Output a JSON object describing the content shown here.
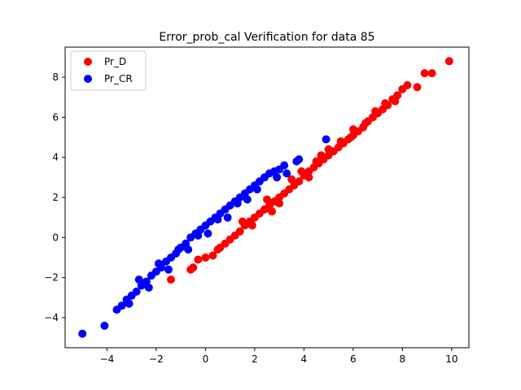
{
  "chart_data": {
    "type": "scatter",
    "title": "Error_prob_cal Verification for data 85",
    "xlabel": "",
    "ylabel": "",
    "xlim": [
      -5.7,
      10.7
    ],
    "ylim": [
      -5.5,
      9.5
    ],
    "xticks": [
      -4,
      -2,
      0,
      2,
      4,
      6,
      8,
      10
    ],
    "yticks": [
      -4,
      -2,
      0,
      2,
      4,
      6,
      8
    ],
    "grid": false,
    "legend_position": "top-left",
    "series": [
      {
        "name": "Pr_D",
        "color": "#ff0000",
        "points": [
          [
            -1.4,
            -2.1
          ],
          [
            -0.6,
            -1.6
          ],
          [
            -0.5,
            -1.5
          ],
          [
            -0.3,
            -1.1
          ],
          [
            0.0,
            -1.0
          ],
          [
            0.3,
            -0.9
          ],
          [
            0.5,
            -0.6
          ],
          [
            0.8,
            -0.3
          ],
          [
            1.0,
            -0.1
          ],
          [
            1.2,
            0.1
          ],
          [
            1.4,
            0.3
          ],
          [
            1.6,
            0.6
          ],
          [
            1.8,
            0.8
          ],
          [
            2.0,
            1.0
          ],
          [
            2.2,
            1.2
          ],
          [
            2.4,
            1.4
          ],
          [
            2.6,
            1.6
          ],
          [
            2.8,
            1.8
          ],
          [
            3.0,
            2.0
          ],
          [
            3.2,
            2.2
          ],
          [
            3.4,
            2.4
          ],
          [
            3.6,
            2.6
          ],
          [
            3.8,
            2.8
          ],
          [
            4.0,
            3.1
          ],
          [
            4.2,
            3.3
          ],
          [
            4.4,
            3.5
          ],
          [
            4.6,
            3.7
          ],
          [
            4.8,
            3.9
          ],
          [
            5.0,
            4.1
          ],
          [
            5.2,
            4.3
          ],
          [
            5.4,
            4.5
          ],
          [
            5.6,
            4.7
          ],
          [
            5.8,
            4.9
          ],
          [
            6.0,
            5.1
          ],
          [
            6.2,
            5.3
          ],
          [
            6.4,
            5.5
          ],
          [
            6.6,
            5.8
          ],
          [
            6.8,
            6.0
          ],
          [
            7.0,
            6.2
          ],
          [
            7.2,
            6.4
          ],
          [
            7.4,
            6.6
          ],
          [
            7.6,
            6.9
          ],
          [
            7.8,
            7.1
          ],
          [
            8.0,
            7.4
          ],
          [
            8.2,
            7.6
          ],
          [
            8.6,
            7.5
          ],
          [
            8.9,
            8.2
          ],
          [
            9.2,
            8.2
          ],
          [
            9.9,
            8.8
          ],
          [
            2.5,
            1.9
          ],
          [
            3.5,
            2.9
          ],
          [
            4.5,
            3.8
          ],
          [
            5.5,
            4.8
          ],
          [
            6.5,
            5.7
          ],
          [
            1.5,
            0.8
          ],
          [
            3.0,
            1.7
          ],
          [
            4.2,
            3.0
          ],
          [
            5.0,
            4.4
          ],
          [
            6.0,
            5.4
          ],
          [
            7.3,
            6.7
          ],
          [
            0.6,
            -0.5
          ],
          [
            1.9,
            0.6
          ],
          [
            2.7,
            1.3
          ],
          [
            3.9,
            3.3
          ],
          [
            4.7,
            4.1
          ],
          [
            5.9,
            5.0
          ],
          [
            6.9,
            6.3
          ],
          [
            7.7,
            6.8
          ]
        ]
      },
      {
        "name": "Pr_CR",
        "color": "#0000ff",
        "points": [
          [
            -5.0,
            -4.8
          ],
          [
            -4.1,
            -4.4
          ],
          [
            -3.6,
            -3.6
          ],
          [
            -3.4,
            -3.4
          ],
          [
            -3.2,
            -3.1
          ],
          [
            -3.0,
            -2.9
          ],
          [
            -2.8,
            -2.7
          ],
          [
            -2.6,
            -2.4
          ],
          [
            -2.4,
            -2.2
          ],
          [
            -2.2,
            -1.9
          ],
          [
            -2.0,
            -1.7
          ],
          [
            -1.8,
            -1.5
          ],
          [
            -1.6,
            -1.2
          ],
          [
            -1.4,
            -1.0
          ],
          [
            -1.2,
            -0.8
          ],
          [
            -1.0,
            -0.5
          ],
          [
            -0.8,
            -0.3
          ],
          [
            -0.6,
            0.0
          ],
          [
            -0.4,
            0.2
          ],
          [
            -0.2,
            0.4
          ],
          [
            0.0,
            0.6
          ],
          [
            0.2,
            0.8
          ],
          [
            0.4,
            1.0
          ],
          [
            0.6,
            1.2
          ],
          [
            0.8,
            1.4
          ],
          [
            1.0,
            1.6
          ],
          [
            1.2,
            1.8
          ],
          [
            1.4,
            2.0
          ],
          [
            1.6,
            2.2
          ],
          [
            1.8,
            2.4
          ],
          [
            2.0,
            2.6
          ],
          [
            2.2,
            2.8
          ],
          [
            2.4,
            3.0
          ],
          [
            2.6,
            3.2
          ],
          [
            2.8,
            3.3
          ],
          [
            3.0,
            3.4
          ],
          [
            3.2,
            3.6
          ],
          [
            3.3,
            3.2
          ],
          [
            3.7,
            3.8
          ],
          [
            3.8,
            3.9
          ],
          [
            4.9,
            4.9
          ],
          [
            -2.7,
            -2.1
          ],
          [
            -1.9,
            -1.3
          ],
          [
            -1.1,
            -0.6
          ],
          [
            -0.3,
            0.1
          ],
          [
            0.5,
            0.9
          ],
          [
            1.3,
            1.7
          ],
          [
            2.1,
            2.4
          ],
          [
            2.9,
            3.0
          ],
          [
            -3.1,
            -3.3
          ],
          [
            -2.3,
            -2.5
          ],
          [
            -1.5,
            -1.6
          ],
          [
            -0.7,
            -0.6
          ],
          [
            0.1,
            0.2
          ],
          [
            0.9,
            1.0
          ],
          [
            1.7,
            1.9
          ]
        ]
      }
    ]
  }
}
